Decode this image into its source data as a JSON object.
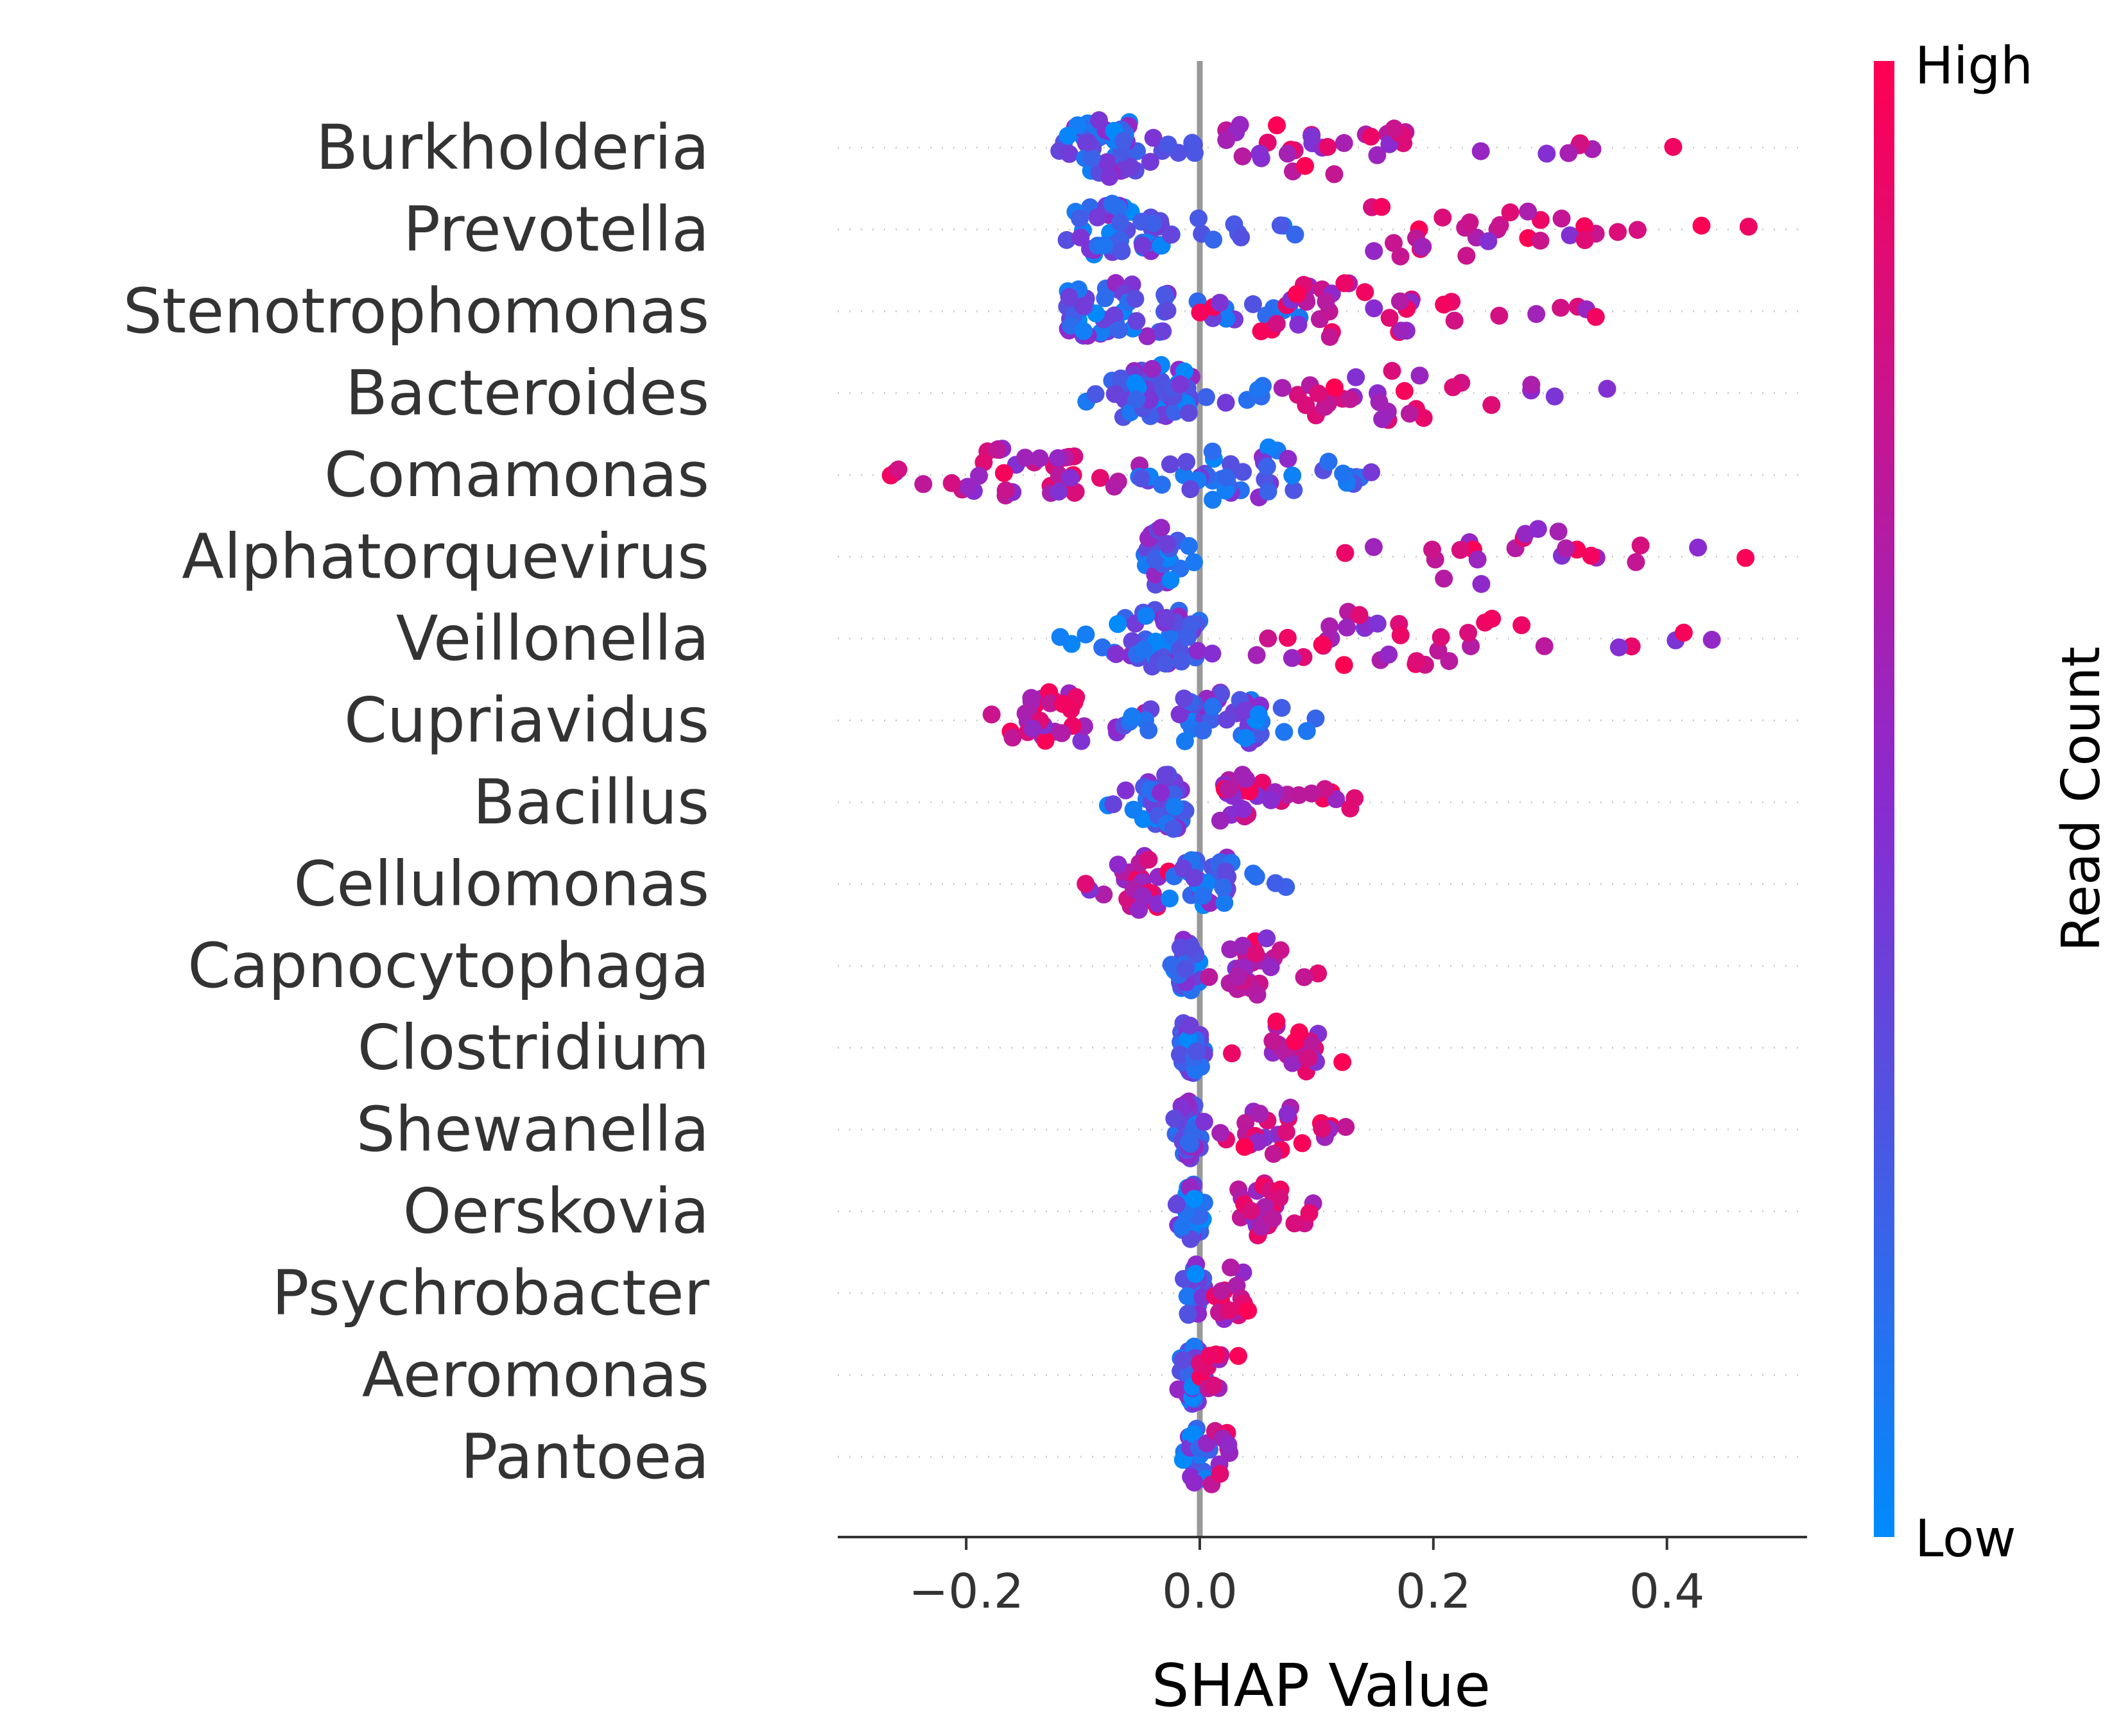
{
  "chart_data": {
    "type": "scatter",
    "subtype": "shap-beeswarm",
    "title": "",
    "xlabel": "SHAP Value",
    "ylabel": "",
    "xlim": [
      -0.31,
      0.52
    ],
    "xticks": [
      -0.2,
      0.0,
      0.2,
      0.4
    ],
    "xtick_labels": [
      "−0.2",
      "0.0",
      "0.2",
      "0.4"
    ],
    "zero_line": true,
    "grid": false,
    "colorbar": {
      "title": "Read Count",
      "high_label": "High",
      "low_label": "Low",
      "high_color": "#ff0052",
      "mid_color": "#8a2bd0",
      "low_color": "#008bfb",
      "placement": "right"
    },
    "features": [
      {
        "name": "Burkholderia",
        "neg_range": [
          -0.135,
          0.0
        ],
        "neg_n": 60,
        "neg_center": -0.08,
        "pos_range": [
          0.02,
          0.41
        ],
        "pos_n": 38,
        "pos_center": 0.1
      },
      {
        "name": "Prevotella",
        "neg_range": [
          -0.115,
          0.09
        ],
        "neg_n": 55,
        "neg_center": -0.07,
        "pos_range": [
          0.14,
          0.48
        ],
        "pos_n": 32,
        "pos_center": 0.2
      },
      {
        "name": "Stenotrophomonas",
        "neg_range": [
          -0.12,
          0.1
        ],
        "neg_n": 60,
        "neg_center": -0.07,
        "pos_range": [
          0.0,
          0.35
        ],
        "pos_n": 42,
        "pos_center": 0.12
      },
      {
        "name": "Bacteroides",
        "neg_range": [
          -0.105,
          0.06
        ],
        "neg_n": 58,
        "neg_center": -0.04,
        "pos_range": [
          0.06,
          0.43
        ],
        "pos_n": 32,
        "pos_center": 0.15
      },
      {
        "name": "Comamonas",
        "neg_range": [
          -0.27,
          -0.05
        ],
        "neg_n": 42,
        "neg_center": -0.15,
        "pos_range": [
          -0.06,
          0.15
        ],
        "pos_n": 48,
        "pos_center": 0.04
      },
      {
        "name": "Alphatorquevirus",
        "neg_range": [
          -0.05,
          0.0
        ],
        "neg_n": 30,
        "neg_center": -0.035,
        "pos_range": [
          0.1,
          0.48
        ],
        "pos_n": 24,
        "pos_center": 0.27
      },
      {
        "name": "Veillonella",
        "neg_range": [
          -0.13,
          0.02
        ],
        "neg_n": 55,
        "neg_center": -0.03,
        "pos_range": [
          0.02,
          0.45
        ],
        "pos_n": 38,
        "pos_center": 0.16
      },
      {
        "name": "Cupriavidus",
        "neg_range": [
          -0.18,
          -0.04
        ],
        "neg_n": 34,
        "neg_center": -0.12,
        "pos_range": [
          -0.07,
          0.1
        ],
        "pos_n": 52,
        "pos_center": 0.02
      },
      {
        "name": "Bacillus",
        "neg_range": [
          -0.08,
          0.0
        ],
        "neg_n": 44,
        "neg_center": -0.03,
        "pos_range": [
          0.0,
          0.155
        ],
        "pos_n": 34,
        "pos_center": 0.05
      },
      {
        "name": "Cellulomonas",
        "neg_range": [
          -0.1,
          -0.02
        ],
        "neg_n": 26,
        "neg_center": -0.05,
        "pos_range": [
          -0.03,
          0.075
        ],
        "pos_n": 40,
        "pos_center": 0.01
      },
      {
        "name": "Capnocytophaga",
        "neg_range": [
          -0.025,
          0.0
        ],
        "neg_n": 40,
        "neg_center": -0.012,
        "pos_range": [
          0.005,
          0.105
        ],
        "pos_n": 30,
        "pos_center": 0.05
      },
      {
        "name": "Clostridium",
        "neg_range": [
          -0.02,
          0.005
        ],
        "neg_n": 40,
        "neg_center": -0.008,
        "pos_range": [
          0.02,
          0.14
        ],
        "pos_n": 28,
        "pos_center": 0.08
      },
      {
        "name": "Shewanella",
        "neg_range": [
          -0.025,
          0.005
        ],
        "neg_n": 40,
        "neg_center": -0.01,
        "pos_range": [
          0.01,
          0.13
        ],
        "pos_n": 28,
        "pos_center": 0.06
      },
      {
        "name": "Oerskovia",
        "neg_range": [
          -0.02,
          0.005
        ],
        "neg_n": 38,
        "neg_center": -0.008,
        "pos_range": [
          0.005,
          0.1
        ],
        "pos_n": 30,
        "pos_center": 0.05
      },
      {
        "name": "Psychrobacter",
        "neg_range": [
          -0.015,
          0.005
        ],
        "neg_n": 30,
        "neg_center": -0.005,
        "pos_range": [
          0.0,
          0.07
        ],
        "pos_n": 16,
        "pos_center": 0.03
      },
      {
        "name": "Aeromonas",
        "neg_range": [
          -0.02,
          0.005
        ],
        "neg_n": 28,
        "neg_center": -0.006,
        "pos_range": [
          0.0,
          0.045
        ],
        "pos_n": 12,
        "pos_center": 0.02
      },
      {
        "name": "Pantoea",
        "neg_range": [
          -0.02,
          0.01
        ],
        "neg_n": 24,
        "neg_center": -0.003,
        "pos_range": [
          -0.02,
          0.035
        ],
        "pos_n": 10,
        "pos_center": 0.015
      }
    ]
  }
}
